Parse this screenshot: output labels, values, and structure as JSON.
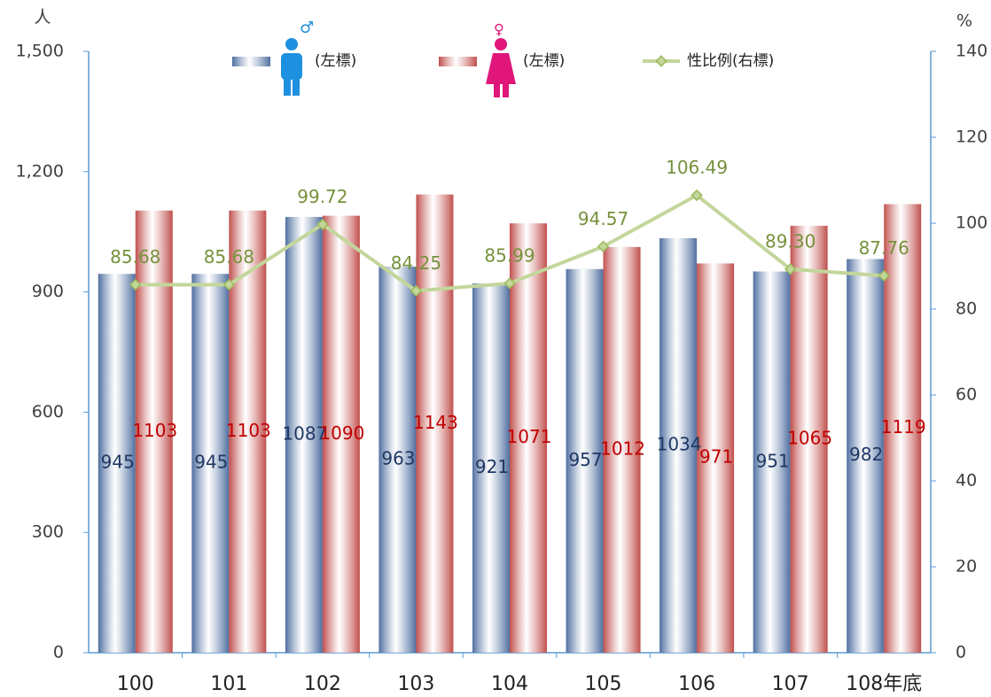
{
  "chart_data": {
    "type": "bar",
    "categories": [
      "100",
      "101",
      "102",
      "103",
      "104",
      "105",
      "106",
      "107",
      "108年底"
    ],
    "y_unit": "人",
    "y2_unit": "%",
    "series": [
      {
        "name": "(左標)",
        "color": "#4f6fa0",
        "values": [
          945,
          945,
          1087,
          963,
          921,
          957,
          1034,
          951,
          982
        ]
      },
      {
        "name": "(左標)",
        "color": "#c0504d",
        "values": [
          1103,
          1103,
          1090,
          1143,
          1071,
          1012,
          971,
          1065,
          1119
        ]
      },
      {
        "name": "性比例(右標)",
        "type": "line",
        "axis": "y2",
        "color": "#9bbb59",
        "values": [
          85.68,
          85.68,
          99.72,
          84.25,
          85.99,
          94.57,
          106.49,
          89.3,
          87.76
        ],
        "value_labels": [
          "85.68",
          "85.68",
          "99.72",
          "84.25",
          "85.99",
          "94.57",
          "106.49",
          "89.30",
          "87.76"
        ]
      }
    ],
    "ylim": [
      0,
      1500
    ],
    "yticks": [
      0,
      300,
      600,
      900,
      {
        "value": 1200,
        "label": "1,200"
      },
      {
        "value": 1500,
        "label": "1,500"
      }
    ],
    "y2lim": [
      0,
      140
    ],
    "y2ticks": [
      0,
      20,
      40,
      60,
      80,
      100,
      120,
      140
    ],
    "grid": false
  }
}
